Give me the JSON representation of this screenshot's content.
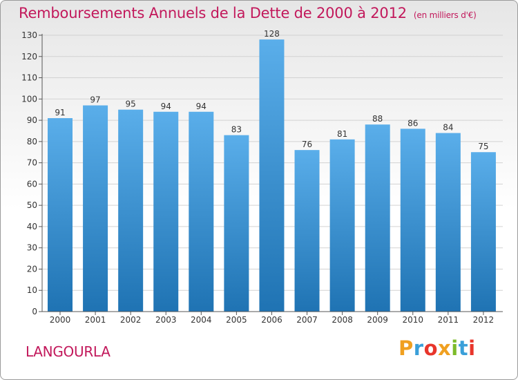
{
  "chart_data": {
    "type": "bar",
    "title": "Remboursements Annuels de la Dette de 2000 à 2012",
    "subtitle": "(en milliers d'€)",
    "categories": [
      "2000",
      "2001",
      "2002",
      "2003",
      "2004",
      "2005",
      "2006",
      "2007",
      "2008",
      "2009",
      "2010",
      "2011",
      "2012"
    ],
    "values": [
      91,
      97,
      95,
      94,
      94,
      83,
      128,
      76,
      81,
      88,
      86,
      84,
      75
    ],
    "ylim": [
      0,
      130
    ],
    "yticks": [
      0,
      10,
      20,
      30,
      40,
      50,
      60,
      70,
      80,
      90,
      100,
      110,
      120,
      130
    ],
    "grid": true,
    "legend": "none",
    "colors": {
      "bar_top": "#5aaeea",
      "bar_bottom": "#1f73b3",
      "text": "#c2185b",
      "grid": "#d2d2d2"
    }
  },
  "commune": "LANGOURLA",
  "logo": {
    "text": "Proxiti",
    "letters": [
      {
        "ch": "P",
        "color": "#f0a020"
      },
      {
        "ch": "r",
        "color": "#3a9fd9"
      },
      {
        "ch": "o",
        "color": "#e8352b"
      },
      {
        "ch": "x",
        "color": "#f0a020"
      },
      {
        "ch": "i",
        "color": "#7dbb2a"
      },
      {
        "ch": "t",
        "color": "#3a9fd9"
      },
      {
        "ch": "i",
        "color": "#e8352b"
      }
    ]
  }
}
